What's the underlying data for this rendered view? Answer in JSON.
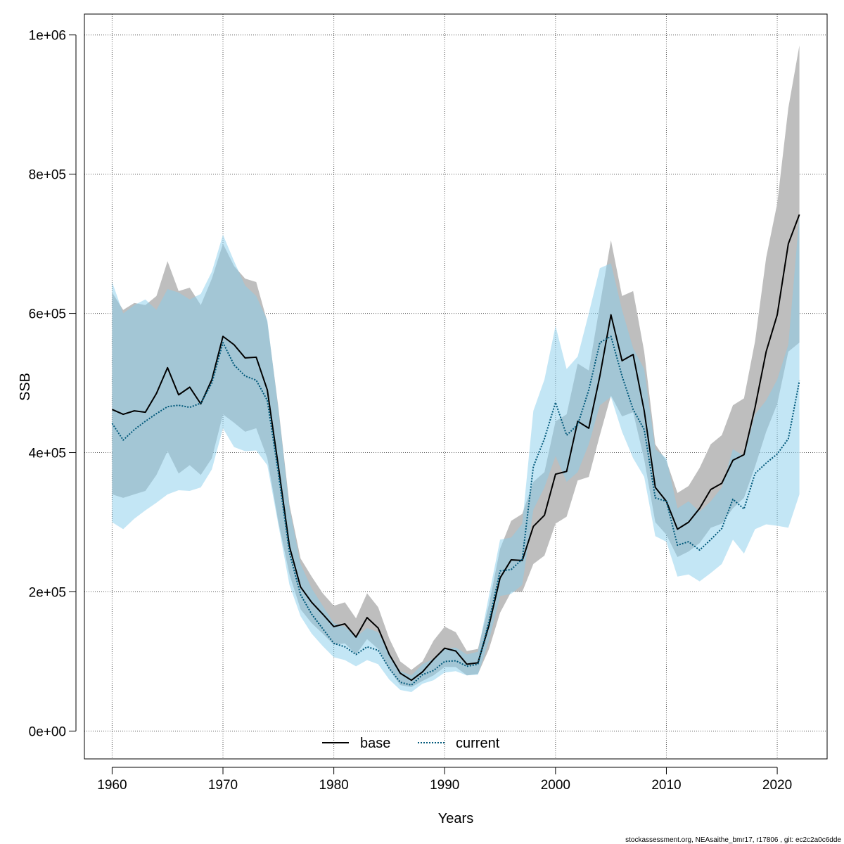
{
  "chart_data": {
    "type": "line",
    "title": "",
    "xlabel": "Years",
    "ylabel": "SSB",
    "xlim": [
      1957.5,
      2024.5
    ],
    "ylim": [
      -40000,
      1030000
    ],
    "x_ticks": [
      1960,
      1970,
      1980,
      1990,
      2000,
      2010,
      2020
    ],
    "x_tick_labels": [
      "1960",
      "1970",
      "1980",
      "1990",
      "2000",
      "2010",
      "2020"
    ],
    "y_ticks": [
      0,
      200000,
      400000,
      600000,
      800000,
      1000000
    ],
    "y_tick_labels": [
      "0e+00",
      "2e+05",
      "4e+05",
      "6e+05",
      "8e+05",
      "1e+06"
    ],
    "grid": true,
    "legend_position": "bottom-center",
    "x": [
      1960,
      1961,
      1962,
      1963,
      1964,
      1965,
      1966,
      1967,
      1968,
      1969,
      1970,
      1971,
      1972,
      1973,
      1974,
      1975,
      1976,
      1977,
      1978,
      1979,
      1980,
      1981,
      1982,
      1983,
      1984,
      1985,
      1986,
      1987,
      1988,
      1989,
      1990,
      1991,
      1992,
      1993,
      1994,
      1995,
      1996,
      1997,
      1998,
      1999,
      2000,
      2001,
      2002,
      2003,
      2004,
      2005,
      2006,
      2007,
      2008,
      2009,
      2010,
      2011,
      2012,
      2013,
      2014,
      2015,
      2016,
      2017,
      2018,
      2019,
      2020,
      2021,
      2022
    ],
    "series": [
      {
        "name": "base",
        "color": "#000000",
        "band_color": "#bebebe",
        "line_style": "solid",
        "values": [
          462000,
          455000,
          460000,
          458000,
          485000,
          522000,
          483000,
          494000,
          470000,
          505000,
          567000,
          555000,
          536000,
          537000,
          490000,
          380000,
          265000,
          207000,
          185000,
          168000,
          150000,
          154000,
          135000,
          163000,
          148000,
          110000,
          83000,
          73000,
          85000,
          103000,
          119000,
          115000,
          96000,
          98000,
          152000,
          220000,
          246000,
          245000,
          294000,
          310000,
          369000,
          373000,
          445000,
          435000,
          510000,
          598000,
          532000,
          541000,
          460000,
          350000,
          330000,
          290000,
          300000,
          320000,
          347000,
          356000,
          389000,
          397000,
          465000,
          545000,
          598000,
          700000,
          742000
        ],
        "lower": [
          340000,
          335000,
          340000,
          345000,
          368000,
          402000,
          370000,
          382000,
          368000,
          392000,
          455000,
          443000,
          430000,
          435000,
          392000,
          300000,
          225000,
          175000,
          155000,
          140000,
          124000,
          126000,
          110000,
          132000,
          118000,
          88000,
          66000,
          63000,
          72000,
          80000,
          92000,
          92000,
          80000,
          82000,
          118000,
          170000,
          200000,
          200000,
          240000,
          252000,
          298000,
          308000,
          360000,
          365000,
          425000,
          482000,
          452000,
          458000,
          390000,
          300000,
          282000,
          250000,
          258000,
          270000,
          292000,
          298000,
          320000,
          335000,
          380000,
          430000,
          470000,
          545000,
          558000
        ],
        "upper": [
          630000,
          605000,
          615000,
          612000,
          625000,
          675000,
          632000,
          637000,
          612000,
          650000,
          700000,
          668000,
          650000,
          645000,
          588000,
          465000,
          325000,
          248000,
          222000,
          198000,
          180000,
          185000,
          162000,
          198000,
          178000,
          133000,
          100000,
          88000,
          100000,
          130000,
          150000,
          142000,
          115000,
          118000,
          182000,
          262000,
          302000,
          312000,
          358000,
          372000,
          445000,
          455000,
          528000,
          518000,
          612000,
          705000,
          625000,
          632000,
          545000,
          412000,
          388000,
          342000,
          352000,
          378000,
          412000,
          425000,
          468000,
          478000,
          560000,
          680000,
          758000,
          895000,
          985000
        ]
      },
      {
        "name": "current",
        "color": "#00587a",
        "band_color": "#87ceeb",
        "line_style": "dotted",
        "values": [
          442000,
          418000,
          433000,
          445000,
          456000,
          466000,
          468000,
          465000,
          471000,
          500000,
          558000,
          526000,
          510000,
          504000,
          475000,
          370000,
          256000,
          196000,
          168000,
          147000,
          126000,
          121000,
          110000,
          121000,
          116000,
          90000,
          70000,
          66000,
          81000,
          87000,
          100000,
          101000,
          93000,
          96000,
          158000,
          230000,
          232000,
          247000,
          380000,
          420000,
          472000,
          425000,
          440000,
          490000,
          558000,
          567000,
          510000,
          462000,
          433000,
          335000,
          330000,
          267000,
          272000,
          260000,
          275000,
          291000,
          333000,
          319000,
          370000,
          385000,
          398000,
          420000,
          503000
        ],
        "lower": [
          300000,
          290000,
          305000,
          317000,
          328000,
          340000,
          346000,
          345000,
          350000,
          376000,
          435000,
          408000,
          402000,
          403000,
          382000,
          296000,
          210000,
          165000,
          140000,
          122000,
          106000,
          102000,
          93000,
          102000,
          96000,
          74000,
          59000,
          56000,
          68000,
          73000,
          84000,
          86000,
          80000,
          81000,
          130000,
          194000,
          197000,
          210000,
          318000,
          350000,
          395000,
          358000,
          372000,
          412000,
          468000,
          480000,
          430000,
          392000,
          365000,
          280000,
          272000,
          222000,
          225000,
          215000,
          227000,
          240000,
          275000,
          255000,
          290000,
          297000,
          295000,
          292000,
          340000
        ],
        "upper": [
          645000,
          600000,
          612000,
          620000,
          605000,
          635000,
          630000,
          620000,
          628000,
          660000,
          713000,
          675000,
          640000,
          625000,
          590000,
          462000,
          320000,
          240000,
          205000,
          180000,
          155000,
          150000,
          135000,
          148000,
          142000,
          112000,
          86000,
          80000,
          96000,
          104000,
          118000,
          120000,
          110000,
          114000,
          195000,
          275000,
          278000,
          298000,
          460000,
          505000,
          582000,
          520000,
          538000,
          600000,
          665000,
          672000,
          605000,
          550000,
          520000,
          405000,
          392000,
          320000,
          330000,
          315000,
          330000,
          350000,
          405000,
          395000,
          455000,
          475000,
          505000,
          555000,
          740000
        ]
      }
    ],
    "footer_note": "stockassessment.org, NEAsaithe_bmr17, r17806 , git: ec2c2a0c6dde"
  }
}
